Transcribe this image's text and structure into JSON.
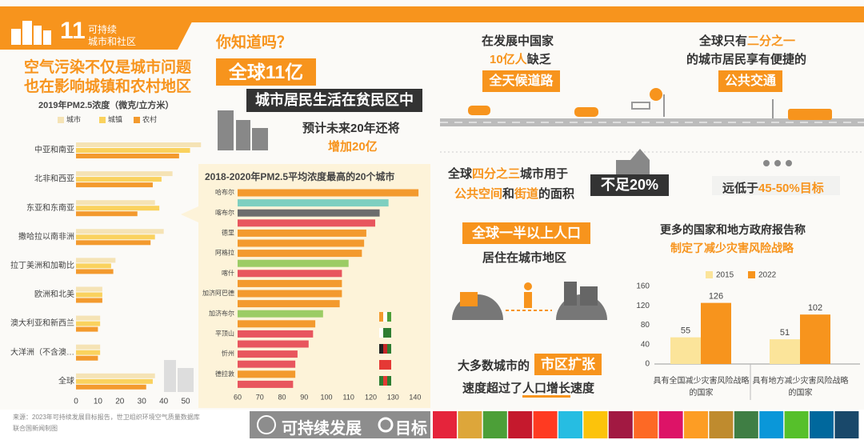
{
  "header": {
    "number": "11",
    "line1": "可持续",
    "line2": "城市和社区"
  },
  "air": {
    "title": [
      "空气污染不仅是城市问题",
      "也在影响城镇和农村地区"
    ]
  },
  "slum": {
    "question": "你知道吗？",
    "highlight": "全球11亿",
    "line": "城市居民生活在贫民区中",
    "forecast": "预计未来20年还将",
    "increase": "增加20亿"
  },
  "roads": {
    "line1": "在发展中国家",
    "line2a": "10亿人",
    "line2b": "缺乏",
    "highlight": "全天候道路"
  },
  "transit": {
    "line1a": "全球只有",
    "line1b": "二分之一",
    "line2": "的城市居民享有便捷的",
    "highlight": "公共交通"
  },
  "space": {
    "line1": [
      "全球",
      "四分之三",
      "城市用于"
    ],
    "line2": [
      "公共空间",
      "和",
      "街道",
      "的面积"
    ],
    "highlight": "不足20%",
    "target": [
      "远低于",
      "45-50%目标"
    ]
  },
  "population": {
    "highlight": "全球一半以上人口",
    "line": "居住在城市地区"
  },
  "sprawl": {
    "line1": "大多数城市的",
    "highlight": "市区扩张",
    "line2": [
      "速度超过了",
      "人口增长",
      "速度"
    ]
  },
  "disaster": {
    "line1": "更多的国家和地方政府报告称",
    "line2": "制定了减少灾害风险战略"
  },
  "footer": {
    "source": "来源：2023年可持续发展目标报告，世卫组织环境空气质量数据库",
    "credit": "联合国新闻制图",
    "brand1": "可持续发展",
    "brand2": "目标"
  },
  "chart_data": [
    {
      "type": "bar",
      "orientation": "horizontal",
      "title": "2019年PM2.5浓度（微克/立方米）",
      "categories": [
        "中亚和南亚",
        "北非和西亚",
        "东亚和东南亚",
        "撒哈拉以南非洲",
        "拉丁美洲和加勒比",
        "欧洲和北美",
        "澳大利亚和新西兰",
        "大洋洲（不含澳…",
        "全球"
      ],
      "series": [
        {
          "name": "城市",
          "color": "#f5e3b5",
          "values": [
            57,
            44,
            36,
            40,
            18,
            12,
            11,
            11,
            36
          ]
        },
        {
          "name": "城镇",
          "color": "#fad25e",
          "values": [
            52,
            39,
            38,
            36,
            16,
            12,
            11,
            11,
            35
          ]
        },
        {
          "name": "农村",
          "color": "#f39a2e",
          "values": [
            47,
            35,
            28,
            34,
            17,
            12,
            10,
            10,
            32
          ]
        }
      ],
      "xlim": [
        0,
        58
      ],
      "xticks": [
        0,
        10,
        20,
        30,
        40,
        50
      ]
    },
    {
      "type": "bar",
      "orientation": "horizontal",
      "title": "2018-2020年PM2.5平均浓度最高的20个城市",
      "categories": [
        "哈布尔",
        null,
        "喀布尔",
        null,
        "德里",
        null,
        "阿格拉",
        null,
        "喀什",
        null,
        "加济阿巴德",
        null,
        "加济布尔",
        null,
        "平顶山",
        null,
        "忻州",
        null,
        "德拉敦",
        null
      ],
      "values": [
        141.5,
        128,
        124,
        122,
        118,
        117,
        116,
        110,
        107,
        107,
        107,
        106,
        98.5,
        95,
        94,
        92,
        87,
        86,
        86,
        85
      ],
      "colors": [
        "#f39a2e",
        "#7ecfc0",
        "#6d6d6d",
        "#e8565e",
        "#f39a2e",
        "#f39a2e",
        "#f39a2e",
        "#9ccc65",
        "#e8565e",
        "#f39a2e",
        "#f39a2e",
        "#f39a2e",
        "#9ccc65",
        "#f39a2e",
        "#e8565e",
        "#e8565e",
        "#e8565e",
        "#e8565e",
        "#f39a2e",
        "#e8565e"
      ],
      "xlim": [
        60,
        142
      ],
      "xticks": [
        60,
        70,
        80,
        90,
        100,
        110,
        120,
        130,
        140
      ]
    },
    {
      "type": "bar",
      "orientation": "vertical",
      "categories": [
        "具有全国减少灾害风险战略的国家",
        "具有地方减少灾害风险战略的国家"
      ],
      "series": [
        {
          "name": "2015",
          "color": "#fbe49a",
          "values": [
            55,
            51
          ]
        },
        {
          "name": "2022",
          "color": "#f7941d",
          "values": [
            126,
            102
          ]
        }
      ],
      "ylim": [
        0,
        160
      ],
      "yticks": [
        0,
        40,
        80,
        120,
        160
      ],
      "data_labels": true
    }
  ]
}
